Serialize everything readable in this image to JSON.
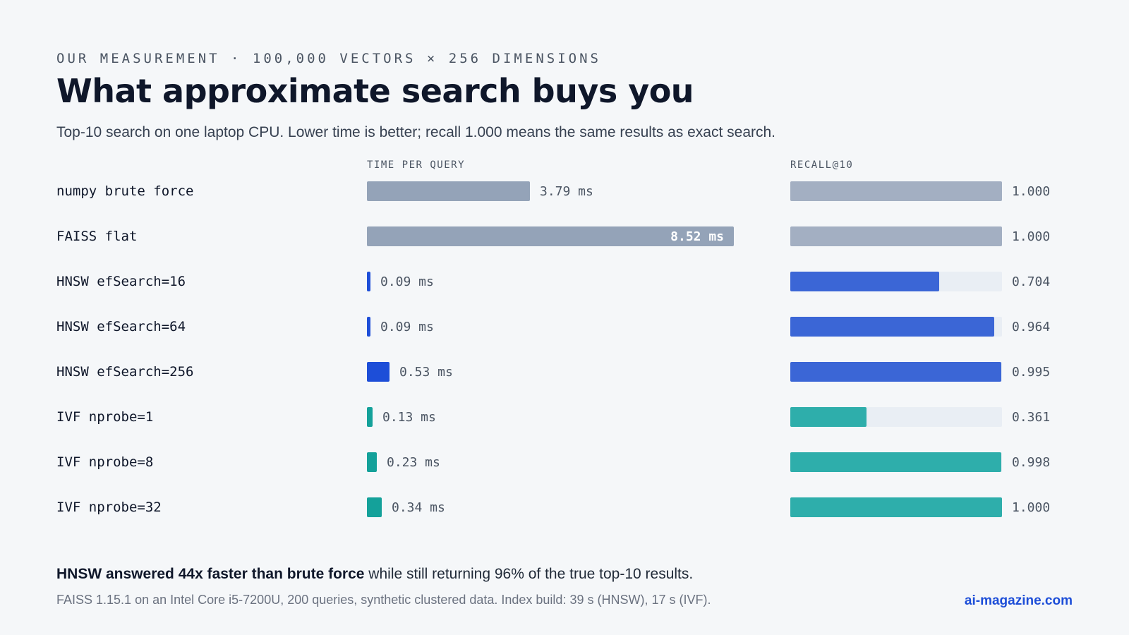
{
  "header": {
    "eyebrow": "OUR MEASUREMENT · 100,000 VECTORS × 256 DIMENSIONS",
    "title": "What approximate search buys you",
    "subtitle": "Top-10 search on one laptop CPU. Lower time is better; recall 1.000 means the same results as exact search."
  },
  "columns": {
    "time": "TIME PER QUERY",
    "recall": "RECALL@10"
  },
  "chart_data": {
    "type": "bar",
    "categories": [
      "numpy brute force",
      "FAISS flat",
      "HNSW efSearch=16",
      "HNSW efSearch=64",
      "HNSW efSearch=256",
      "IVF nprobe=1",
      "IVF nprobe=8",
      "IVF nprobe=32"
    ],
    "series": [
      {
        "name": "TIME PER QUERY",
        "unit": "ms",
        "values": [
          3.79,
          8.52,
          0.09,
          0.09,
          0.53,
          0.13,
          0.23,
          0.34
        ],
        "labels": [
          "3.79 ms",
          "8.52 ms",
          "0.09 ms",
          "0.09 ms",
          "0.53 ms",
          "0.13 ms",
          "0.23 ms",
          "0.34 ms"
        ],
        "xlim": [
          0,
          8.52
        ]
      },
      {
        "name": "RECALL@10",
        "values": [
          1.0,
          1.0,
          0.704,
          0.964,
          0.995,
          0.361,
          0.998,
          1.0
        ],
        "labels": [
          "1.000",
          "1.000",
          "0.704",
          "0.964",
          "0.995",
          "0.361",
          "0.998",
          "1.000"
        ],
        "xlim": [
          0,
          1
        ]
      }
    ],
    "groups": [
      "exact",
      "exact",
      "hnsw",
      "hnsw",
      "hnsw",
      "ivf",
      "ivf",
      "ivf"
    ],
    "colors": {
      "exact_time": "#94a3b8",
      "exact_recall": "#a3afc2",
      "hnsw_time": "#1d4ed8",
      "hnsw_recall": "#3b66d6",
      "ivf_time": "#14a19a",
      "ivf_recall": "#2eaeab",
      "track": "#e9eef4"
    }
  },
  "callout": {
    "bold": "HNSW answered 44x faster than brute force",
    "rest": " while still returning 96% of the true top-10 results."
  },
  "footnote": "FAISS 1.15.1 on an Intel Core i5-7200U, 200 queries, synthetic clustered data. Index build: 39 s (HNSW), 17 s (IVF).",
  "source": "ai-magazine.com"
}
